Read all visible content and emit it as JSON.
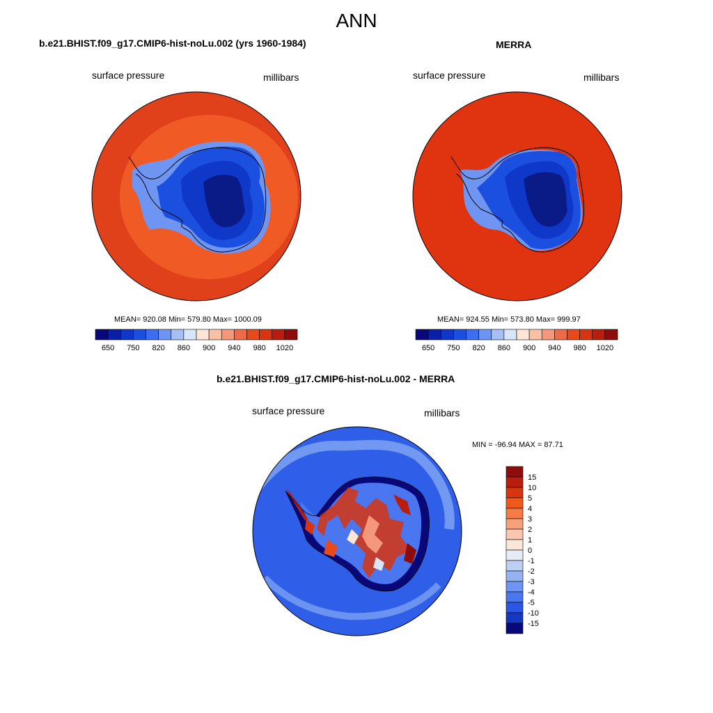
{
  "figure": {
    "title": "ANN"
  },
  "panels": {
    "model": {
      "title": "b.e21.BHIST.f09_g17.CMIP6-hist-noLu.002 (yrs 1960-1984)",
      "variable": "surface pressure",
      "units": "millibars",
      "stats": "MEAN= 920.08  Min= 579.80  Max= 1000.09",
      "colorbar_ticks": [
        "650",
        "750",
        "820",
        "860",
        "900",
        "940",
        "980",
        "1020"
      ]
    },
    "obs": {
      "title": "MERRA",
      "variable": "surface pressure",
      "units": "millibars",
      "stats": "MEAN= 924.55  Min= 573.80  Max= 999.97",
      "colorbar_ticks": [
        "650",
        "750",
        "820",
        "860",
        "900",
        "940",
        "980",
        "1020"
      ]
    },
    "diff": {
      "title": "b.e21.BHIST.f09_g17.CMIP6-hist-noLu.002 - MERRA",
      "variable": "surface pressure",
      "units": "millibars",
      "stats": "MIN = -96.94 MAX =  87.71",
      "colorbar_ticks": [
        "15",
        "10",
        "5",
        "4",
        "3",
        "2",
        "1",
        "0",
        "-1",
        "-2",
        "-3",
        "-4",
        "-5",
        "-10",
        "-15"
      ]
    }
  },
  "colors": {
    "abs_scale": [
      "#08087a",
      "#0a1fa8",
      "#0f37c8",
      "#1a4fe0",
      "#3b6ef0",
      "#6f95f2",
      "#a6c0f5",
      "#d8e6fa",
      "#fde6d6",
      "#f9c2a6",
      "#f4977a",
      "#ef6a47",
      "#e84a1c",
      "#d6350f",
      "#b91d0e",
      "#8f0c0c"
    ],
    "diff_scale": [
      "#8f0c0c",
      "#b91d0e",
      "#d6350f",
      "#ef5a1c",
      "#f57c46",
      "#f7a07c",
      "#fac6ad",
      "#fbe6da",
      "#e6ecf6",
      "#bcd0f3",
      "#94b3f0",
      "#6f95f2",
      "#4a76ef",
      "#2b57e4",
      "#1438c4",
      "#08087a"
    ],
    "ocean_model": "#e0411a",
    "ocean_model_inner": "#f05a25",
    "ocean_obs": "#e0330f",
    "ice_deep": "#0a1a86",
    "ice_mid": "#1a4fe0",
    "ice_light": "#6f95f2",
    "diff_ocean": "#2f5fe8",
    "diff_ocean_light": "#7aa0f2"
  }
}
